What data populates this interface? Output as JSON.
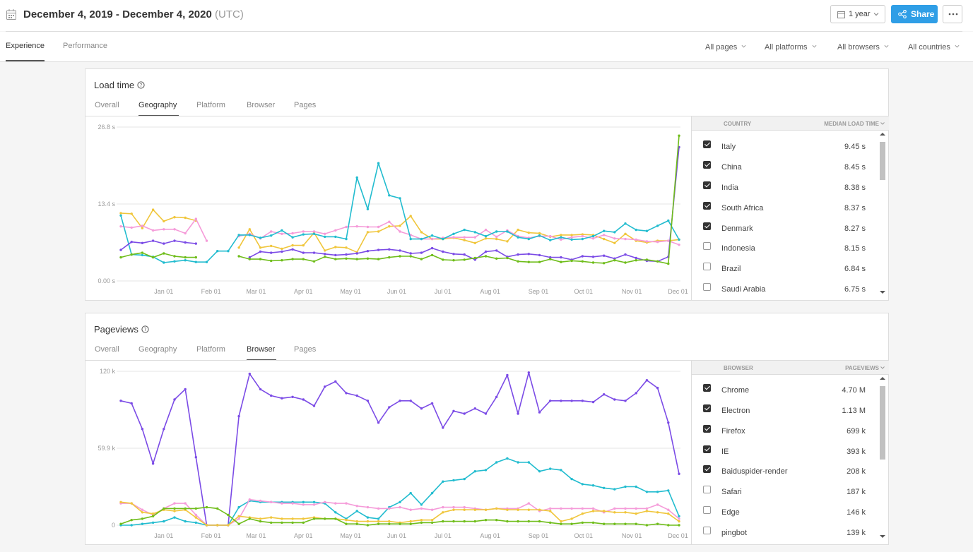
{
  "header": {
    "date_range": "December 4, 2019 - December 4, 2020",
    "timezone": "(UTC)",
    "period_button": "1 year",
    "share_button": "Share",
    "icons": {
      "calendar": "calendar-icon",
      "share": "share-icon",
      "more": "more-icon"
    },
    "colors": {
      "share": "#2f9ee6"
    }
  },
  "nav": {
    "tabs": [
      {
        "label": "Experience",
        "active": true
      },
      {
        "label": "Performance",
        "active": false
      }
    ],
    "filters": [
      "All pages",
      "All platforms",
      "All browsers",
      "All countries"
    ]
  },
  "load_time": {
    "title": "Load time",
    "tabs": [
      "Overall",
      "Geography",
      "Platform",
      "Browser",
      "Pages"
    ],
    "active_tab": "Geography",
    "columns": [
      "COUNTRY",
      "MEDIAN LOAD TIME"
    ],
    "rows": [
      {
        "name": "Italy",
        "value": "9.45 s",
        "checked": true
      },
      {
        "name": "China",
        "value": "8.45 s",
        "checked": true
      },
      {
        "name": "India",
        "value": "8.38 s",
        "checked": true
      },
      {
        "name": "South Africa",
        "value": "8.37 s",
        "checked": true
      },
      {
        "name": "Denmark",
        "value": "8.27 s",
        "checked": true
      },
      {
        "name": "Indonesia",
        "value": "8.15 s",
        "checked": false
      },
      {
        "name": "Brazil",
        "value": "6.84 s",
        "checked": false
      },
      {
        "name": "Saudi Arabia",
        "value": "6.75 s",
        "checked": false
      }
    ]
  },
  "pageviews": {
    "title": "Pageviews",
    "tabs": [
      "Overall",
      "Geography",
      "Platform",
      "Browser",
      "Pages"
    ],
    "active_tab": "Browser",
    "columns": [
      "BROWSER",
      "PAGEVIEWS"
    ],
    "rows": [
      {
        "name": "Chrome",
        "value": "4.70 M",
        "checked": true
      },
      {
        "name": "Electron",
        "value": "1.13 M",
        "checked": true
      },
      {
        "name": "Firefox",
        "value": "699 k",
        "checked": true
      },
      {
        "name": "IE",
        "value": "393 k",
        "checked": true
      },
      {
        "name": "Baiduspider-render",
        "value": "208 k",
        "checked": true
      },
      {
        "name": "Safari",
        "value": "187 k",
        "checked": false
      },
      {
        "name": "Edge",
        "value": "146 k",
        "checked": false
      },
      {
        "name": "pingbot",
        "value": "139 k",
        "checked": false
      }
    ]
  },
  "chart_data": [
    {
      "type": "line",
      "title": "Load time",
      "x_unit": "weeks from Dec 4, 2019",
      "x_ticks": [
        "Jan 01",
        "Feb 01",
        "Mar 01",
        "Apr 01",
        "May 01",
        "Jun 01",
        "Jul 01",
        "Aug 01",
        "Sep 01",
        "Oct 01",
        "Nov 01",
        "Dec 01"
      ],
      "x_tick_weeks": [
        4,
        8.4,
        12.6,
        17,
        21.4,
        25.7,
        30,
        34.4,
        38.9,
        43.1,
        47.6,
        51.9
      ],
      "y_ticks": [
        "0.00 s",
        "13.4 s",
        "26.8 s"
      ],
      "ylim": [
        0,
        26.8
      ],
      "series": [
        {
          "color": "#f0c63c",
          "values": [
            11.8,
            11.7,
            9.2,
            12.4,
            10.4,
            11.1,
            11.0,
            10.5,
            null,
            null,
            null,
            5.8,
            9.0,
            5.8,
            6.1,
            5.6,
            6.2,
            6.2,
            8.4,
            5.3,
            5.9,
            5.8,
            5.0,
            8.5,
            8.6,
            9.5,
            9.6,
            11.3,
            8.5,
            7.3,
            7.3,
            7.5,
            7.1,
            6.6,
            7.4,
            7.3,
            6.9,
            8.9,
            8.4,
            8.3,
            7.7,
            8.0,
            8.0,
            8.1,
            8.0,
            7.3,
            6.6,
            8.2,
            7.0,
            6.7,
            7.0,
            7.0,
            7.2
          ]
        },
        {
          "color": "#f59bd9",
          "values": [
            9.5,
            9.3,
            9.6,
            8.8,
            9.0,
            9.0,
            8.3,
            10.8,
            7.0,
            null,
            null,
            7.8,
            8.2,
            7.4,
            8.6,
            8.2,
            8.3,
            8.6,
            8.6,
            8.2,
            8.8,
            9.4,
            9.5,
            9.4,
            9.4,
            10.3,
            8.6,
            8.0,
            7.3,
            7.3,
            7.5,
            7.6,
            7.6,
            7.6,
            8.9,
            7.7,
            8.8,
            7.8,
            7.5,
            7.8,
            7.8,
            7.2,
            7.6,
            7.8,
            7.4,
            8.0,
            7.4,
            7.3,
            7.2,
            6.9,
            6.8,
            7.0,
            6.3
          ]
        },
        {
          "color": "#22bccf",
          "values": [
            11.4,
            4.6,
            4.5,
            4.2,
            3.2,
            3.4,
            3.6,
            3.3,
            3.3,
            5.2,
            5.2,
            8.0,
            8.0,
            7.5,
            7.9,
            8.8,
            7.6,
            8.1,
            8.2,
            7.7,
            7.7,
            7.3,
            18.0,
            12.5,
            20.5,
            14.9,
            14.4,
            7.3,
            7.3,
            7.9,
            7.3,
            8.2,
            8.9,
            8.5,
            7.8,
            8.6,
            8.6,
            7.6,
            7.3,
            7.9,
            7.1,
            7.6,
            7.2,
            7.3,
            7.8,
            8.7,
            8.5,
            10.0,
            8.9,
            8.7,
            9.6,
            10.5,
            7.2
          ]
        },
        {
          "color": "#7b4be6",
          "values": [
            5.4,
            6.8,
            6.6,
            7.0,
            6.5,
            7.0,
            6.7,
            6.5,
            null,
            null,
            null,
            null,
            4.1,
            5.1,
            4.9,
            5.1,
            5.5,
            4.9,
            4.9,
            4.7,
            4.5,
            4.6,
            4.8,
            5.2,
            5.4,
            5.5,
            5.3,
            4.8,
            4.9,
            5.7,
            5.1,
            4.7,
            4.6,
            3.7,
            5.1,
            5.3,
            4.2,
            4.6,
            4.7,
            4.5,
            4.1,
            4.1,
            3.7,
            4.3,
            4.2,
            4.4,
            3.9,
            4.6,
            4.0,
            3.5,
            3.4,
            4.2,
            23.3
          ]
        },
        {
          "color": "#6fbd1a",
          "values": [
            4.1,
            4.6,
            4.9,
            4.1,
            4.8,
            4.3,
            4.1,
            4.1,
            null,
            null,
            null,
            4.3,
            3.8,
            3.8,
            3.5,
            3.6,
            3.8,
            3.8,
            3.4,
            4.2,
            3.8,
            3.9,
            3.8,
            3.9,
            3.8,
            4.1,
            4.3,
            4.3,
            3.8,
            4.5,
            3.7,
            3.6,
            3.7,
            4.0,
            4.3,
            3.9,
            4.0,
            3.4,
            3.3,
            3.3,
            3.8,
            3.3,
            3.5,
            3.4,
            3.2,
            3.1,
            3.6,
            3.2,
            3.6,
            3.7,
            3.4,
            3.0,
            25.3
          ]
        }
      ]
    },
    {
      "type": "line",
      "title": "Pageviews",
      "x_unit": "weeks from Dec 4, 2019",
      "x_ticks": [
        "Jan 01",
        "Feb 01",
        "Mar 01",
        "Apr 01",
        "May 01",
        "Jun 01",
        "Jul 01",
        "Aug 01",
        "Sep 01",
        "Oct 01",
        "Nov 01",
        "Dec 01"
      ],
      "x_tick_weeks": [
        4,
        8.4,
        12.6,
        17,
        21.4,
        25.7,
        30,
        34.4,
        38.9,
        43.1,
        47.6,
        51.9
      ],
      "y_ticks": [
        "0",
        "59.9 k",
        "120 k"
      ],
      "ylim": [
        0,
        120000
      ],
      "series": [
        {
          "color": "#7b4be6",
          "values": [
            97000,
            95000,
            75000,
            48000,
            75000,
            98000,
            106000,
            53000,
            0,
            0,
            0,
            85000,
            118000,
            106000,
            101000,
            99000,
            100000,
            98000,
            93000,
            108000,
            112000,
            103000,
            101000,
            97000,
            80000,
            92000,
            97000,
            97000,
            91000,
            95000,
            76000,
            89000,
            87000,
            91000,
            87000,
            100000,
            117000,
            87000,
            119000,
            88000,
            97000,
            97000,
            97000,
            97000,
            96000,
            102000,
            98000,
            97000,
            103000,
            113000,
            107000,
            80000,
            40000
          ]
        },
        {
          "color": "#22bccf",
          "values": [
            0,
            0,
            1000,
            2000,
            3000,
            6000,
            3000,
            2000,
            0,
            0,
            0,
            14000,
            19000,
            18000,
            18000,
            18000,
            18000,
            18000,
            18000,
            17000,
            10000,
            5000,
            11000,
            6000,
            5000,
            14000,
            18000,
            25000,
            16000,
            25000,
            34000,
            35000,
            36000,
            42000,
            43000,
            49000,
            52000,
            49000,
            49000,
            42000,
            44000,
            43000,
            36000,
            32000,
            31000,
            29000,
            28000,
            30000,
            30000,
            26000,
            26000,
            27000,
            7000
          ]
        },
        {
          "color": "#f59bd9",
          "values": [
            17000,
            17000,
            12000,
            8000,
            13000,
            17000,
            17000,
            8000,
            0,
            0,
            0,
            5000,
            20000,
            19000,
            18000,
            17000,
            17000,
            16000,
            16000,
            18000,
            17000,
            17000,
            15000,
            14000,
            13000,
            13000,
            14000,
            12000,
            13000,
            12000,
            14000,
            14000,
            14000,
            13000,
            12000,
            13000,
            13000,
            13000,
            17000,
            11000,
            13000,
            13000,
            13000,
            13000,
            13000,
            10000,
            13000,
            13000,
            13000,
            13000,
            16000,
            12000,
            5000
          ]
        },
        {
          "color": "#f0c63c",
          "values": [
            18000,
            17000,
            10000,
            9000,
            12000,
            11000,
            12000,
            6000,
            0,
            0,
            0,
            7000,
            6000,
            5000,
            6000,
            5000,
            5000,
            5000,
            6000,
            5000,
            5000,
            4000,
            3000,
            3000,
            3000,
            3000,
            2000,
            3000,
            4000,
            4000,
            10000,
            12000,
            12000,
            12000,
            12000,
            13000,
            12000,
            12000,
            12000,
            12000,
            11000,
            3000,
            5000,
            9000,
            11000,
            11000,
            10000,
            10000,
            9000,
            11000,
            10000,
            9000,
            3000
          ]
        },
        {
          "color": "#6fbd1a",
          "values": [
            1000,
            4000,
            5000,
            7000,
            13000,
            13000,
            13000,
            13000,
            14000,
            13000,
            8000,
            1000,
            5000,
            3000,
            2000,
            2000,
            2000,
            2000,
            5000,
            5000,
            5000,
            1000,
            1000,
            0,
            1000,
            1000,
            1000,
            1000,
            2000,
            2000,
            3000,
            3000,
            3000,
            3000,
            4000,
            4000,
            3000,
            3000,
            3000,
            3000,
            2000,
            1000,
            1000,
            2000,
            2000,
            1000,
            1000,
            1000,
            1000,
            0,
            1000,
            0,
            0
          ]
        }
      ]
    }
  ]
}
